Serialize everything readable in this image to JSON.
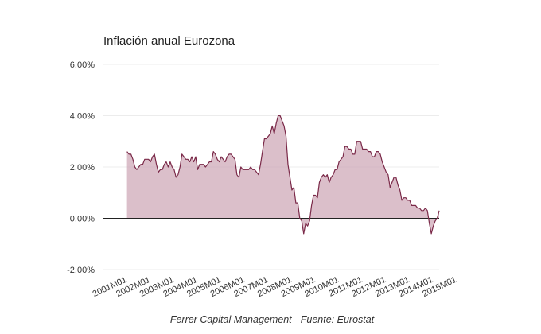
{
  "chart_data": {
    "type": "area",
    "title": "Inflación anual Eurozona",
    "xlabel": "",
    "ylabel": "",
    "ylim": [
      -2,
      6
    ],
    "yticks": [
      -2,
      0,
      2,
      4,
      6
    ],
    "ytick_labels": [
      "-2.00%",
      "0.00%",
      "2.00%",
      "4.00%",
      "6.00%"
    ],
    "xtick_labels": [
      "2001M01",
      "2002M01",
      "2003M01",
      "2004M01",
      "2005M01",
      "2006M01",
      "2007M01",
      "2008M01",
      "2009M01",
      "2010M01",
      "2011M01",
      "2012M01",
      "2013M01",
      "2014M01",
      "2015M01"
    ],
    "x_range": [
      "2001M01",
      "2015M04"
    ],
    "grid": true,
    "colors": {
      "fill": "#cfa9b8",
      "line": "#7a2948",
      "grid": "#ececec",
      "zero_line": "#222222"
    },
    "source_note": "Ferrer Capital Management - Fuente: Eurostat",
    "series": [
      {
        "name": "Inflación anual",
        "start": "2002M01",
        "step": "month",
        "values": [
          2.6,
          2.5,
          2.5,
          2.3,
          2.0,
          1.9,
          2.0,
          2.1,
          2.1,
          2.3,
          2.3,
          2.3,
          2.2,
          2.4,
          2.5,
          2.1,
          1.8,
          1.9,
          1.9,
          2.1,
          2.2,
          2.0,
          2.2,
          2.0,
          1.9,
          1.6,
          1.7,
          2.0,
          2.5,
          2.4,
          2.3,
          2.3,
          2.2,
          2.4,
          2.2,
          2.4,
          1.9,
          2.1,
          2.1,
          2.1,
          2.0,
          2.1,
          2.2,
          2.2,
          2.6,
          2.5,
          2.3,
          2.2,
          2.4,
          2.3,
          2.2,
          2.4,
          2.5,
          2.5,
          2.4,
          2.3,
          1.7,
          1.6,
          2.0,
          1.9,
          1.9,
          1.9,
          1.9,
          2.0,
          1.9,
          1.9,
          1.8,
          1.7,
          2.1,
          2.6,
          3.1,
          3.1,
          3.2,
          3.3,
          3.6,
          3.3,
          3.7,
          4.0,
          4.0,
          3.8,
          3.6,
          3.2,
          2.1,
          1.6,
          1.1,
          1.2,
          0.6,
          0.6,
          0.0,
          -0.1,
          -0.6,
          -0.2,
          -0.3,
          -0.1,
          0.5,
          0.9,
          0.9,
          0.8,
          1.4,
          1.6,
          1.7,
          1.6,
          1.7,
          1.4,
          1.6,
          1.7,
          1.9,
          1.9,
          2.2,
          2.3,
          2.4,
          2.8,
          2.8,
          2.7,
          2.7,
          2.5,
          2.5,
          3.0,
          3.0,
          3.0,
          2.7,
          2.7,
          2.7,
          2.6,
          2.6,
          2.4,
          2.4,
          2.6,
          2.6,
          2.5,
          2.2,
          2.0,
          1.8,
          1.7,
          1.2,
          1.4,
          1.6,
          1.6,
          1.3,
          1.1,
          0.7,
          0.8,
          0.8,
          0.7,
          0.7,
          0.5,
          0.5,
          0.5,
          0.4,
          0.4,
          0.3,
          0.3,
          0.4,
          0.3,
          -0.2,
          -0.6,
          -0.3,
          -0.1,
          0.0,
          0.3
        ]
      }
    ]
  }
}
